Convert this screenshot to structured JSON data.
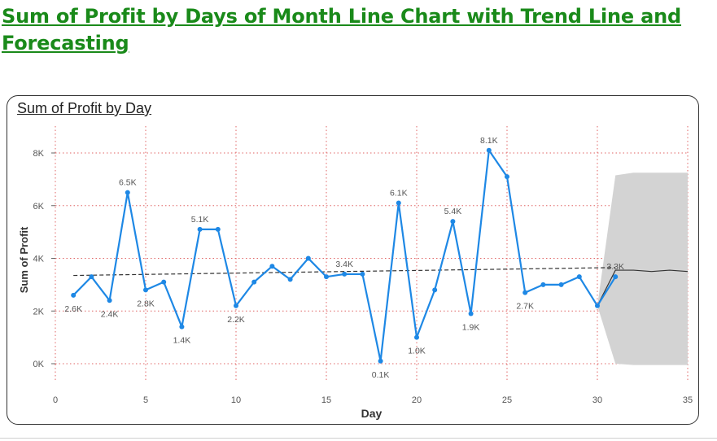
{
  "page": {
    "title": "Sum of Profit by Days of Month Line Chart with Trend Line and Forecasting"
  },
  "visual": {
    "title": "Sum of Profit by Day"
  },
  "colors": {
    "line": "#1e88e5",
    "trend": "#333333",
    "forecast_band": "#d3d3d3",
    "title": "#1a8a1a",
    "grid": "#e06666"
  },
  "chart_data": {
    "type": "line",
    "title": "Sum of Profit by Day",
    "xlabel": "Day",
    "ylabel": "Sum of Profit",
    "xlim": [
      0,
      35
    ],
    "ylim": [
      0,
      8000
    ],
    "x_ticks": [
      0,
      5,
      10,
      15,
      20,
      25,
      30,
      35
    ],
    "y_ticks": [
      {
        "value": 0,
        "label": "0K"
      },
      {
        "value": 2000,
        "label": "2K"
      },
      {
        "value": 4000,
        "label": "4K"
      },
      {
        "value": 6000,
        "label": "6K"
      },
      {
        "value": 8000,
        "label": "8K"
      }
    ],
    "series": [
      {
        "x": [
          1,
          2,
          3,
          4,
          5,
          6,
          7,
          8,
          9,
          10,
          11,
          12,
          13,
          14,
          15,
          16,
          17,
          18,
          19,
          20,
          21,
          22,
          23,
          24,
          25,
          26,
          27,
          28,
          29,
          30,
          31
        ],
        "values": [
          2600,
          3300,
          2400,
          6500,
          2800,
          3100,
          1400,
          5100,
          5100,
          2200,
          3100,
          3700,
          3200,
          4000,
          3300,
          3400,
          3400,
          100,
          6100,
          1000,
          2800,
          5400,
          1900,
          8100,
          7100,
          2700,
          3000,
          3000,
          3300,
          2200,
          3300
        ]
      }
    ],
    "data_labels": [
      {
        "x": 1,
        "label": "2.6K",
        "pos": "below"
      },
      {
        "x": 3,
        "label": "2.4K",
        "pos": "below"
      },
      {
        "x": 4,
        "label": "6.5K",
        "pos": "above"
      },
      {
        "x": 5,
        "label": "2.8K",
        "pos": "below"
      },
      {
        "x": 7,
        "label": "1.4K",
        "pos": "below"
      },
      {
        "x": 8,
        "label": "5.1K",
        "pos": "above"
      },
      {
        "x": 10,
        "label": "2.2K",
        "pos": "below"
      },
      {
        "x": 16,
        "label": "3.4K",
        "pos": "above"
      },
      {
        "x": 18,
        "label": "0.1K",
        "pos": "below"
      },
      {
        "x": 19,
        "label": "6.1K",
        "pos": "above"
      },
      {
        "x": 20,
        "label": "1.0K",
        "pos": "below"
      },
      {
        "x": 22,
        "label": "5.4K",
        "pos": "above"
      },
      {
        "x": 23,
        "label": "1.9K",
        "pos": "below"
      },
      {
        "x": 24,
        "label": "8.1K",
        "pos": "above"
      },
      {
        "x": 26,
        "label": "2.7K",
        "pos": "below"
      },
      {
        "x": 31,
        "label": "3.3K",
        "pos": "above"
      }
    ],
    "trend_line": {
      "x": [
        1,
        31
      ],
      "values": [
        3350,
        3650
      ]
    },
    "forecast": {
      "x": [
        30,
        31,
        32,
        33,
        34,
        35
      ],
      "values": [
        2200,
        3550,
        3550,
        3500,
        3550,
        3500
      ],
      "upper": [
        2200,
        7150,
        7250,
        7250,
        7250,
        7250
      ],
      "lower": [
        2200,
        0,
        -50,
        -50,
        -50,
        -50
      ]
    },
    "grid": true
  }
}
